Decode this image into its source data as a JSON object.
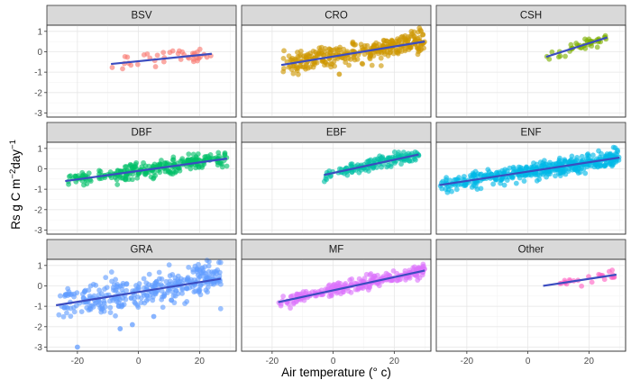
{
  "chart_data": {
    "type": "scatter",
    "xlabel": "Air temperature (° c)",
    "ylabel_parts": [
      "Rs g C m",
      "−2",
      "day",
      "−1"
    ],
    "xlim": [
      -30,
      32
    ],
    "ylim": [
      -3.2,
      1.3
    ],
    "x_ticks": [
      -20,
      0,
      20
    ],
    "x_tick_labels": [
      "-20",
      "0",
      "20"
    ],
    "y_ticks": [
      -3,
      -2,
      -1,
      0,
      1
    ],
    "y_tick_labels": [
      "-3",
      "-2",
      "-1",
      "0",
      "1"
    ],
    "grid": true,
    "fit_line_color": "#3b4cc0",
    "facets": [
      {
        "name": "BSV",
        "color": "#f8766d",
        "x_range": [
          -9,
          24
        ],
        "fit": [
          [
            -9,
            -0.6
          ],
          [
            24,
            -0.1
          ]
        ],
        "n": 40,
        "spread": 0.18
      },
      {
        "name": "CRO",
        "color": "#cd9600",
        "x_range": [
          -17,
          30
        ],
        "fit": [
          [
            -17,
            -0.65
          ],
          [
            30,
            0.5
          ]
        ],
        "n": 320,
        "spread": 0.28
      },
      {
        "name": "CSH",
        "color": "#7cae00",
        "x_range": [
          6,
          26
        ],
        "fit": [
          [
            6,
            -0.25
          ],
          [
            26,
            0.7
          ]
        ],
        "n": 45,
        "spread": 0.12
      },
      {
        "name": "DBF",
        "color": "#00be67",
        "x_range": [
          -24,
          29
        ],
        "fit": [
          [
            -24,
            -0.6
          ],
          [
            29,
            0.5
          ]
        ],
        "n": 260,
        "spread": 0.18
      },
      {
        "name": "EBF",
        "color": "#00bfa4",
        "x_range": [
          -3,
          28
        ],
        "fit": [
          [
            -3,
            -0.3
          ],
          [
            28,
            0.7
          ]
        ],
        "n": 140,
        "spread": 0.15
      },
      {
        "name": "ENF",
        "color": "#00b8e7",
        "x_range": [
          -29,
          30
        ],
        "fit": [
          [
            -29,
            -0.8
          ],
          [
            30,
            0.55
          ]
        ],
        "n": 420,
        "spread": 0.2
      },
      {
        "name": "GRA",
        "color": "#619cff",
        "x_range": [
          -27,
          27
        ],
        "fit": [
          [
            -27,
            -0.95
          ],
          [
            27,
            0.35
          ]
        ],
        "n": 330,
        "spread": 0.4
      },
      {
        "name": "MF",
        "color": "#db72fb",
        "x_range": [
          -18,
          30
        ],
        "fit": [
          [
            -18,
            -0.8
          ],
          [
            30,
            0.75
          ]
        ],
        "n": 260,
        "spread": 0.17
      },
      {
        "name": "Other",
        "color": "#ff61c3",
        "x_range": [
          5,
          29
        ],
        "fit": [
          [
            5,
            0.0
          ],
          [
            29,
            0.55
          ]
        ],
        "n": 25,
        "spread": 0.1
      }
    ],
    "outliers": [
      {
        "facet": "GRA",
        "x": -20,
        "y": -3.0
      },
      {
        "facet": "GRA",
        "x": -6,
        "y": -2.1
      },
      {
        "facet": "GRA",
        "x": -2,
        "y": -1.9
      },
      {
        "facet": "GRA",
        "x": 5,
        "y": -1.5
      },
      {
        "facet": "CRO",
        "x": 2,
        "y": -1.1
      }
    ]
  }
}
